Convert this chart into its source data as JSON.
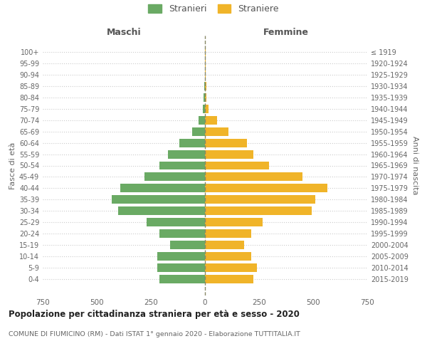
{
  "age_groups": [
    "0-4",
    "5-9",
    "10-14",
    "15-19",
    "20-24",
    "25-29",
    "30-34",
    "35-39",
    "40-44",
    "45-49",
    "50-54",
    "55-59",
    "60-64",
    "65-69",
    "70-74",
    "75-79",
    "80-84",
    "85-89",
    "90-94",
    "95-99",
    "100+"
  ],
  "birth_years": [
    "2015-2019",
    "2010-2014",
    "2005-2009",
    "2000-2004",
    "1995-1999",
    "1990-1994",
    "1985-1989",
    "1980-1984",
    "1975-1979",
    "1970-1974",
    "1965-1969",
    "1960-1964",
    "1955-1959",
    "1950-1954",
    "1945-1949",
    "1940-1944",
    "1935-1939",
    "1930-1934",
    "1925-1929",
    "1920-1924",
    "≤ 1919"
  ],
  "maschi": [
    210,
    220,
    220,
    160,
    210,
    270,
    400,
    430,
    390,
    280,
    210,
    170,
    120,
    60,
    30,
    10,
    5,
    2,
    1,
    0,
    0
  ],
  "femmine": [
    225,
    240,
    215,
    180,
    215,
    265,
    495,
    510,
    565,
    450,
    295,
    225,
    195,
    110,
    55,
    15,
    8,
    5,
    3,
    2,
    2
  ],
  "male_color": "#6aaa64",
  "female_color": "#f0b429",
  "title_main": "Popolazione per cittadinanza straniera per età e sesso - 2020",
  "title_sub": "COMUNE DI FIUMICINO (RM) - Dati ISTAT 1° gennaio 2020 - Elaborazione TUTTITALIA.IT",
  "ylabel_left": "Fasce di età",
  "ylabel_right": "Anni di nascita",
  "xlabel_left": "Maschi",
  "xlabel_right": "Femmine",
  "legend_male": "Stranieri",
  "legend_female": "Straniere",
  "xlim": 750,
  "background_color": "#ffffff",
  "grid_color": "#cccccc"
}
